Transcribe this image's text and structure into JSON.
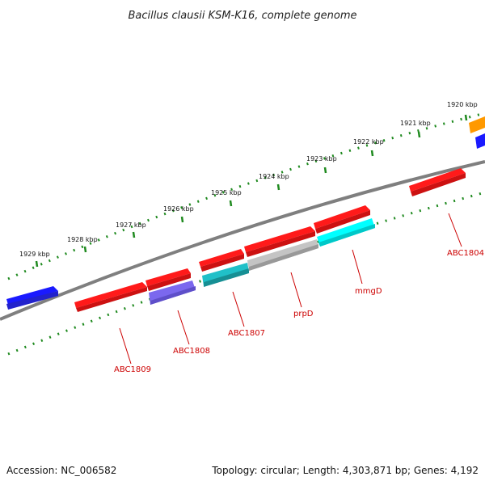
{
  "title": "Bacillus clausii KSM-K16, complete genome",
  "accession": "Accession: NC_006582",
  "summary": "Topology: circular; Length: 4,303,871 bp; Genes: 4,192",
  "scale_labels": [
    "1929 kbp",
    "1928 kbp",
    "1927 kbp",
    "1926 kbp",
    "1925 kbp",
    "1924 kbp",
    "1923 kbp",
    "1922 kbp",
    "1921 kbp",
    "1920 kbp"
  ],
  "gene_labels": [
    "ABC1809",
    "ABC1808",
    "ABC1807",
    "prpD",
    "mmgD",
    "ABC1804"
  ],
  "colors": {
    "red": "#ff1a1a",
    "blue": "#1a1aff",
    "slate": "#7b68ee",
    "teal": "#20b8c0",
    "gray": "#b8b8b8",
    "cyan": "#00ffff",
    "orange": "#ff9900",
    "backbone": "#7f7f7f",
    "ticks": "#1f8a1f",
    "label": "#cc0000"
  }
}
